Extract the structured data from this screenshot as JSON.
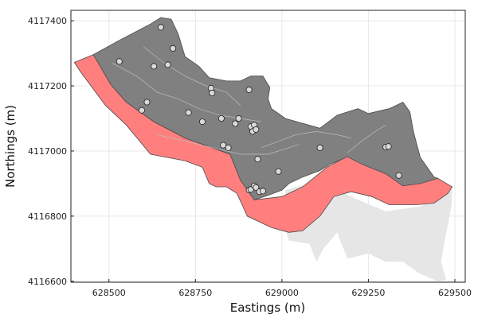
{
  "chart_data": {
    "type": "scatter",
    "title": "",
    "xlabel": "Eastings (m)",
    "ylabel": "Northings (m)",
    "xlim": [
      628390,
      629530
    ],
    "ylim": [
      4116597,
      4117432
    ],
    "xticks": [
      {
        "value": 628500,
        "label": "628500"
      },
      {
        "value": 628750,
        "label": "628750"
      },
      {
        "value": 629000,
        "label": "629000"
      },
      {
        "value": 629250,
        "label": "629250"
      },
      {
        "value": 629500,
        "label": "629500"
      }
    ],
    "yticks": [
      {
        "value": 4116600,
        "label": "4116600"
      },
      {
        "value": 4116800,
        "label": "4116800"
      },
      {
        "value": 4117000,
        "label": "4117000"
      },
      {
        "value": 4117200,
        "label": "4117200"
      },
      {
        "value": 4117400,
        "label": "4117400"
      }
    ],
    "grid": true,
    "legend": "none",
    "colors": {
      "extended_region": "#e6e6e6",
      "buffer_region": "#ff7f7f",
      "core_region": "#808080",
      "points": "#d9d9d9",
      "contour_lines": "#bdbdbd"
    },
    "regions": [
      {
        "id": "extended",
        "points": [
          [
            629010,
            4116880
          ],
          [
            629060,
            4116895
          ],
          [
            629150,
            4116885
          ],
          [
            629220,
            4116850
          ],
          [
            629300,
            4116815
          ],
          [
            629400,
            4116830
          ],
          [
            629480,
            4116870
          ],
          [
            629493,
            4116890
          ],
          [
            629490,
            4116830
          ],
          [
            629470,
            4116720
          ],
          [
            629460,
            4116660
          ],
          [
            629475,
            4116605
          ],
          [
            629450,
            4116600
          ],
          [
            629395,
            4116625
          ],
          [
            629350,
            4116660
          ],
          [
            629300,
            4116660
          ],
          [
            629250,
            4116685
          ],
          [
            629190,
            4116670
          ],
          [
            629170,
            4116720
          ],
          [
            629160,
            4116750
          ],
          [
            629120,
            4116700
          ],
          [
            629100,
            4116660
          ],
          [
            629080,
            4116715
          ],
          [
            629020,
            4116725
          ],
          [
            629010,
            4116760
          ]
        ]
      },
      {
        "id": "buffer",
        "points": [
          [
            628400,
            4117272
          ],
          [
            628455,
            4117296
          ],
          [
            628505,
            4117205
          ],
          [
            628550,
            4117150
          ],
          [
            628630,
            4117090
          ],
          [
            628720,
            4117040
          ],
          [
            628850,
            4116990
          ],
          [
            628880,
            4116930
          ],
          [
            628920,
            4116850
          ],
          [
            629000,
            4116860
          ],
          [
            629060,
            4116890
          ],
          [
            629130,
            4116950
          ],
          [
            629200,
            4116990
          ],
          [
            629300,
            4117000
          ],
          [
            629360,
            4116990
          ],
          [
            629400,
            4116920
          ],
          [
            629450,
            4116916
          ],
          [
            629492,
            4116890
          ],
          [
            629480,
            4116870
          ],
          [
            629440,
            4116840
          ],
          [
            629390,
            4116835
          ],
          [
            629310,
            4116835
          ],
          [
            629260,
            4116860
          ],
          [
            629200,
            4116875
          ],
          [
            629150,
            4116860
          ],
          [
            629110,
            4116800
          ],
          [
            629060,
            4116755
          ],
          [
            629020,
            4116750
          ],
          [
            628970,
            4116765
          ],
          [
            628900,
            4116800
          ],
          [
            628870,
            4116870
          ],
          [
            628840,
            4116890
          ],
          [
            628810,
            4116890
          ],
          [
            628790,
            4116900
          ],
          [
            628770,
            4116950
          ],
          [
            628720,
            4116970
          ],
          [
            628620,
            4116990
          ],
          [
            628550,
            4117080
          ],
          [
            628490,
            4117140
          ],
          [
            628420,
            4117240
          ]
        ]
      },
      {
        "id": "core",
        "points": [
          [
            628455,
            4117296
          ],
          [
            628530,
            4117340
          ],
          [
            628620,
            4117390
          ],
          [
            628650,
            4117410
          ],
          [
            628680,
            4117405
          ],
          [
            628700,
            4117360
          ],
          [
            628720,
            4117290
          ],
          [
            628760,
            4117260
          ],
          [
            628790,
            4117225
          ],
          [
            628840,
            4117215
          ],
          [
            628880,
            4117215
          ],
          [
            628910,
            4117230
          ],
          [
            628945,
            4117230
          ],
          [
            628965,
            4117195
          ],
          [
            628960,
            4117160
          ],
          [
            628970,
            4117130
          ],
          [
            629010,
            4117100
          ],
          [
            629060,
            4117085
          ],
          [
            629110,
            4117070
          ],
          [
            629160,
            4117110
          ],
          [
            629220,
            4117130
          ],
          [
            629250,
            4117115
          ],
          [
            629310,
            4117130
          ],
          [
            629350,
            4117150
          ],
          [
            629370,
            4117120
          ],
          [
            629380,
            4117060
          ],
          [
            629390,
            4117020
          ],
          [
            629400,
            4116980
          ],
          [
            629440,
            4116920
          ],
          [
            629450,
            4116916
          ],
          [
            629400,
            4116900
          ],
          [
            629350,
            4116893
          ],
          [
            629300,
            4116930
          ],
          [
            629230,
            4116960
          ],
          [
            629190,
            4116982
          ],
          [
            629140,
            4116960
          ],
          [
            629110,
            4116940
          ],
          [
            629060,
            4116920
          ],
          [
            629020,
            4116900
          ],
          [
            629000,
            4116880
          ],
          [
            628955,
            4116862
          ],
          [
            628920,
            4116850
          ],
          [
            628880,
            4116910
          ],
          [
            628850,
            4116990
          ],
          [
            628720,
            4117040
          ],
          [
            628630,
            4117090
          ],
          [
            628550,
            4117150
          ],
          [
            628505,
            4117205
          ]
        ]
      }
    ],
    "contours": [
      [
        [
          628510,
          4117270
        ],
        [
          628580,
          4117230
        ],
        [
          628640,
          4117180
        ],
        [
          628700,
          4117160
        ],
        [
          628760,
          4117130
        ],
        [
          628820,
          4117110
        ],
        [
          628880,
          4117100
        ],
        [
          628940,
          4117090
        ]
      ],
      [
        [
          628600,
          4117320
        ],
        [
          628660,
          4117270
        ],
        [
          628720,
          4117230
        ],
        [
          628780,
          4117200
        ],
        [
          628840,
          4117180
        ],
        [
          628880,
          4117140
        ]
      ],
      [
        [
          628640,
          4117050
        ],
        [
          628720,
          4117030
        ],
        [
          628800,
          4117010
        ],
        [
          628880,
          4116990
        ],
        [
          628960,
          4116990
        ],
        [
          629050,
          4117020
        ]
      ],
      [
        [
          628940,
          4117010
        ],
        [
          628990,
          4117030
        ],
        [
          629040,
          4117050
        ],
        [
          629100,
          4117060
        ],
        [
          629160,
          4117050
        ],
        [
          629200,
          4117040
        ]
      ],
      [
        [
          629190,
          4116995
        ],
        [
          629230,
          4117030
        ],
        [
          629270,
          4117060
        ],
        [
          629300,
          4117080
        ]
      ]
    ],
    "x": [
      628530,
      628650,
      628685,
      628630,
      628670,
      628610,
      628595,
      628730,
      628770,
      628795,
      628798,
      628825,
      628830,
      628845,
      628865,
      628875,
      628905,
      628910,
      628915,
      628920,
      628925,
      628930,
      628905,
      628910,
      628920,
      628925,
      628935,
      628945,
      628990,
      629110,
      629300,
      629308,
      629338
    ],
    "y": [
      4117275,
      4117380,
      4117315,
      4117260,
      4117265,
      4117150,
      4117125,
      4117118,
      4117090,
      4117193,
      4117178,
      4117100,
      4117018,
      4117010,
      4117084,
      4117100,
      4117188,
      4117075,
      4117060,
      4117080,
      4117066,
      4116975,
      4116880,
      4116882,
      4116893,
      4116888,
      4116875,
      4116877,
      4116937,
      4117010,
      4117012,
      4117014,
      4116925
    ]
  }
}
